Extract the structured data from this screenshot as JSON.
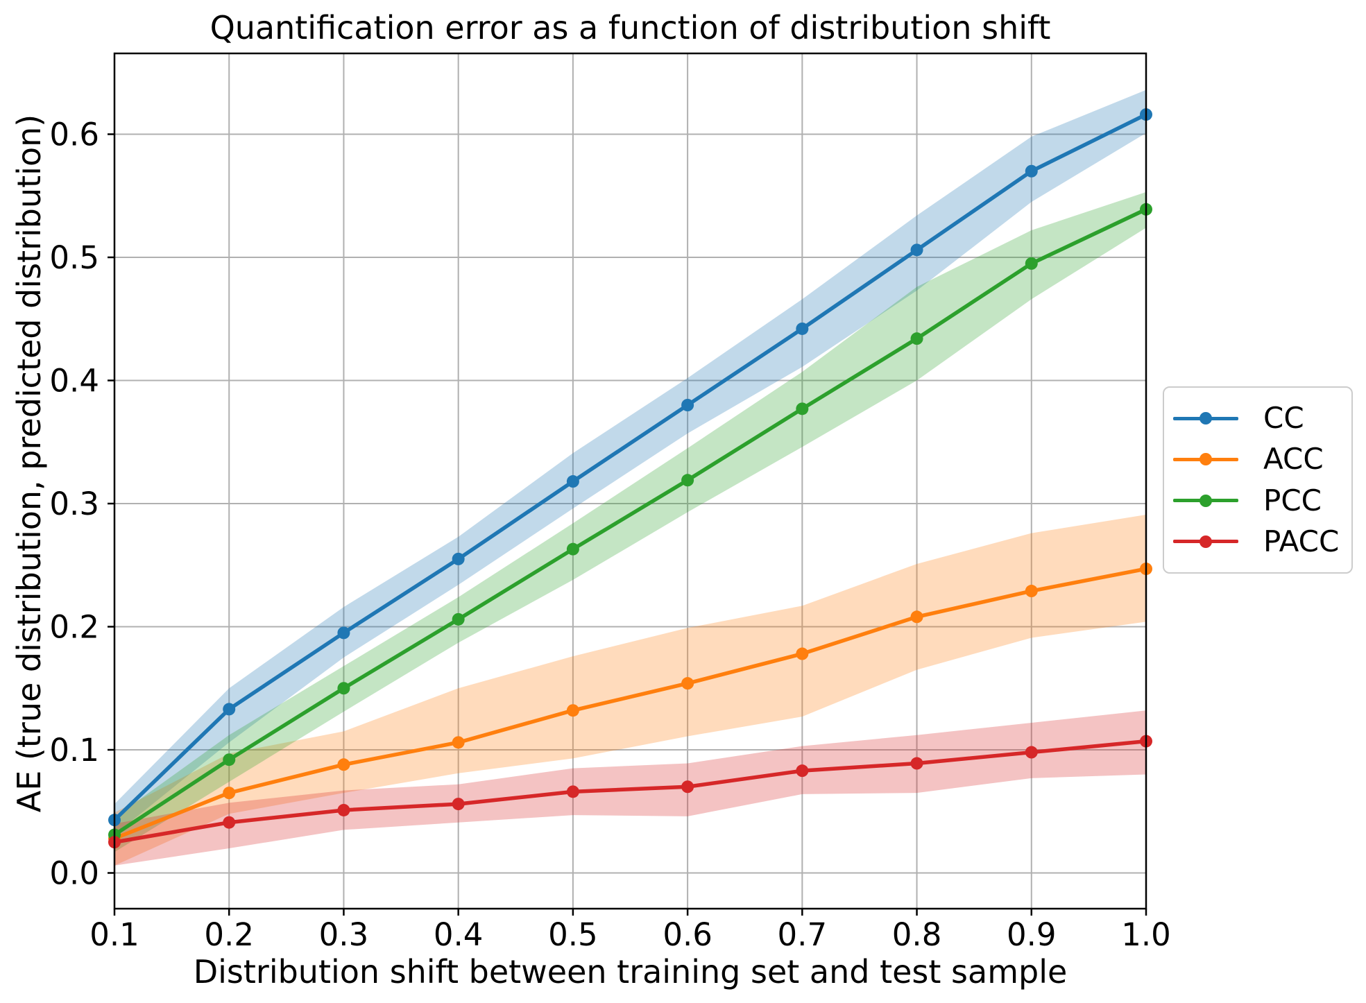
{
  "page": {
    "background": "#ffffff"
  },
  "chart_data": {
    "type": "line",
    "title": "Quantification error as a function of distribution shift",
    "xlabel": "Distribution shift between training set and test sample",
    "ylabel": "AE (true distribution, predicted distribution)",
    "x": [
      0.1,
      0.2,
      0.3,
      0.4,
      0.5,
      0.6,
      0.7,
      0.8,
      0.9,
      1.0
    ],
    "xlim": [
      0.1,
      1.0
    ],
    "ylim": [
      -0.029,
      0.666
    ],
    "grid": true,
    "grid_color": "#b0b0b0",
    "band_opacity": 0.28,
    "legend_position": "center-right-outside",
    "xticks": [
      {
        "value": 0.1,
        "label": "0.1"
      },
      {
        "value": 0.2,
        "label": "0.2"
      },
      {
        "value": 0.3,
        "label": "0.3"
      },
      {
        "value": 0.4,
        "label": "0.4"
      },
      {
        "value": 0.5,
        "label": "0.5"
      },
      {
        "value": 0.6,
        "label": "0.6"
      },
      {
        "value": 0.7,
        "label": "0.7"
      },
      {
        "value": 0.8,
        "label": "0.8"
      },
      {
        "value": 0.9,
        "label": "0.9"
      },
      {
        "value": 1.0,
        "label": "1.0"
      }
    ],
    "yticks": [
      {
        "value": 0.0,
        "label": "0.0"
      },
      {
        "value": 0.1,
        "label": "0.1"
      },
      {
        "value": 0.2,
        "label": "0.2"
      },
      {
        "value": 0.3,
        "label": "0.3"
      },
      {
        "value": 0.4,
        "label": "0.4"
      },
      {
        "value": 0.5,
        "label": "0.5"
      },
      {
        "value": 0.6,
        "label": "0.6"
      }
    ],
    "series": [
      {
        "name": "CC",
        "color": "#1f77b4",
        "marker": "circle",
        "values": [
          0.043,
          0.133,
          0.195,
          0.255,
          0.318,
          0.38,
          0.442,
          0.506,
          0.57,
          0.616
        ],
        "band_lower": [
          0.031,
          0.106,
          0.175,
          0.234,
          0.296,
          0.357,
          0.411,
          0.473,
          0.545,
          0.601
        ],
        "band_upper": [
          0.056,
          0.15,
          0.216,
          0.273,
          0.341,
          0.402,
          0.466,
          0.534,
          0.598,
          0.636
        ]
      },
      {
        "name": "ACC",
        "color": "#ff7f0e",
        "marker": "circle",
        "values": [
          0.028,
          0.065,
          0.088,
          0.106,
          0.132,
          0.154,
          0.178,
          0.208,
          0.229,
          0.247
        ],
        "band_lower": [
          0.006,
          0.048,
          0.065,
          0.081,
          0.093,
          0.111,
          0.127,
          0.165,
          0.191,
          0.204
        ],
        "band_upper": [
          0.049,
          0.097,
          0.115,
          0.15,
          0.176,
          0.199,
          0.217,
          0.251,
          0.276,
          0.291
        ]
      },
      {
        "name": "PCC",
        "color": "#2ca02c",
        "marker": "circle",
        "values": [
          0.031,
          0.092,
          0.15,
          0.206,
          0.263,
          0.319,
          0.377,
          0.434,
          0.495,
          0.539
        ],
        "band_lower": [
          0.017,
          0.074,
          0.131,
          0.187,
          0.238,
          0.293,
          0.346,
          0.4,
          0.466,
          0.524
        ],
        "band_upper": [
          0.045,
          0.112,
          0.168,
          0.224,
          0.284,
          0.345,
          0.407,
          0.476,
          0.522,
          0.553
        ]
      },
      {
        "name": "PACC",
        "color": "#d62728",
        "marker": "circle",
        "values": [
          0.025,
          0.041,
          0.051,
          0.056,
          0.066,
          0.07,
          0.083,
          0.089,
          0.098,
          0.107
        ],
        "band_lower": [
          0.006,
          0.02,
          0.035,
          0.041,
          0.047,
          0.046,
          0.064,
          0.065,
          0.077,
          0.08
        ],
        "band_upper": [
          0.04,
          0.057,
          0.067,
          0.072,
          0.085,
          0.089,
          0.103,
          0.112,
          0.122,
          0.132
        ]
      }
    ]
  }
}
